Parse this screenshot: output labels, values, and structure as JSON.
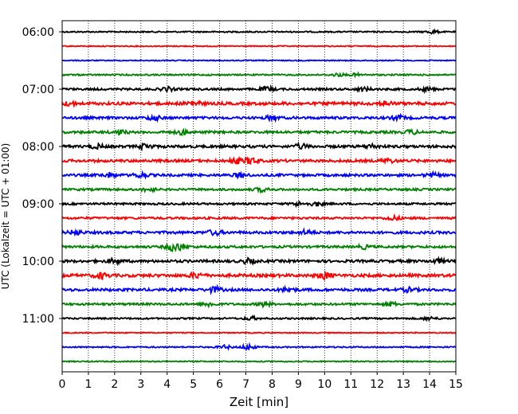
{
  "chart_data": {
    "type": "line",
    "title": "",
    "xlabel": "Zeit  [min]",
    "ylabel": "UTC (Lokalzeit = UTC + 01:00)",
    "xlim": [
      0,
      15
    ],
    "x_ticks": [
      0,
      1,
      2,
      3,
      4,
      5,
      6,
      7,
      8,
      9,
      10,
      11,
      12,
      13,
      14,
      15
    ],
    "x_grid": "dotted",
    "y_ticks": [
      {
        "label": "06:00",
        "row": 0
      },
      {
        "label": "07:00",
        "row": 4
      },
      {
        "label": "08:00",
        "row": 8
      },
      {
        "label": "09:00",
        "row": 12
      },
      {
        "label": "10:00",
        "row": 16
      },
      {
        "label": "11:00",
        "row": 20
      }
    ],
    "row_colors": [
      "#000000",
      "#ff0000",
      "#0000ff",
      "#008000"
    ],
    "traces": [
      {
        "start": "06:00",
        "amp": 0.8,
        "events": [
          [
            14.1,
            2.0
          ]
        ]
      },
      {
        "start": "06:15",
        "amp": 0.6,
        "events": []
      },
      {
        "start": "06:30",
        "amp": 0.6,
        "events": []
      },
      {
        "start": "06:45",
        "amp": 0.9,
        "events": [
          [
            10.5,
            1.6
          ],
          [
            11.2,
            1.4
          ]
        ]
      },
      {
        "start": "07:00",
        "amp": 1.3,
        "events": [
          [
            4.0,
            2.2
          ],
          [
            7.8,
            2.4
          ],
          [
            11.5,
            2.2
          ],
          [
            13.9,
            2.0
          ]
        ]
      },
      {
        "start": "07:15",
        "amp": 1.8,
        "events": [
          [
            0.3,
            2.2
          ],
          [
            5.0,
            3.0
          ],
          [
            12.3,
            2.6
          ]
        ]
      },
      {
        "start": "07:30",
        "amp": 1.5,
        "events": [
          [
            3.5,
            2.6
          ],
          [
            8.0,
            2.4
          ],
          [
            12.8,
            2.4
          ]
        ]
      },
      {
        "start": "07:45",
        "amp": 1.5,
        "events": [
          [
            2.2,
            2.2
          ],
          [
            4.6,
            2.4
          ],
          [
            13.3,
            2.2
          ]
        ]
      },
      {
        "start": "08:00",
        "amp": 1.6,
        "events": [
          [
            1.3,
            2.4
          ],
          [
            3.2,
            3.0
          ],
          [
            9.1,
            2.6
          ],
          [
            11.8,
            2.2
          ]
        ]
      },
      {
        "start": "08:15",
        "amp": 1.6,
        "events": [
          [
            6.6,
            3.0
          ],
          [
            7.2,
            3.6
          ],
          [
            12.4,
            2.2
          ]
        ]
      },
      {
        "start": "08:30",
        "amp": 1.5,
        "events": [
          [
            1.8,
            2.4
          ],
          [
            3.0,
            3.0
          ],
          [
            6.8,
            2.4
          ],
          [
            14.1,
            2.2
          ]
        ]
      },
      {
        "start": "08:45",
        "amp": 1.3,
        "events": [
          [
            3.3,
            2.0
          ],
          [
            7.6,
            2.2
          ]
        ]
      },
      {
        "start": "09:00",
        "amp": 1.2,
        "events": [
          [
            9.0,
            2.2
          ],
          [
            9.7,
            2.4
          ]
        ]
      },
      {
        "start": "09:15",
        "amp": 1.3,
        "events": [
          [
            12.6,
            2.4
          ]
        ]
      },
      {
        "start": "09:30",
        "amp": 1.6,
        "events": [
          [
            0.5,
            2.4
          ],
          [
            5.8,
            2.8
          ],
          [
            9.3,
            2.4
          ]
        ]
      },
      {
        "start": "09:45",
        "amp": 1.4,
        "events": [
          [
            4.2,
            3.6
          ],
          [
            4.5,
            3.0
          ],
          [
            11.5,
            2.0
          ]
        ]
      },
      {
        "start": "10:00",
        "amp": 1.6,
        "events": [
          [
            2.0,
            2.4
          ],
          [
            7.1,
            2.6
          ],
          [
            14.3,
            2.2
          ]
        ]
      },
      {
        "start": "10:15",
        "amp": 1.8,
        "events": [
          [
            1.5,
            3.0
          ],
          [
            5.1,
            2.8
          ],
          [
            10.0,
            3.6
          ]
        ]
      },
      {
        "start": "10:30",
        "amp": 1.6,
        "events": [
          [
            5.8,
            3.0
          ],
          [
            8.6,
            2.4
          ],
          [
            13.2,
            2.2
          ]
        ]
      },
      {
        "start": "10:45",
        "amp": 1.3,
        "events": [
          [
            5.6,
            2.2
          ],
          [
            7.7,
            2.6
          ],
          [
            12.5,
            2.0
          ]
        ]
      },
      {
        "start": "11:00",
        "amp": 1.0,
        "events": [
          [
            7.2,
            2.0
          ],
          [
            14.0,
            1.8
          ]
        ]
      },
      {
        "start": "11:15",
        "amp": 0.6,
        "events": []
      },
      {
        "start": "11:30",
        "amp": 0.8,
        "events": [
          [
            7.1,
            3.2
          ],
          [
            6.2,
            2.0
          ]
        ]
      },
      {
        "start": "11:45",
        "amp": 0.7,
        "events": []
      }
    ]
  }
}
